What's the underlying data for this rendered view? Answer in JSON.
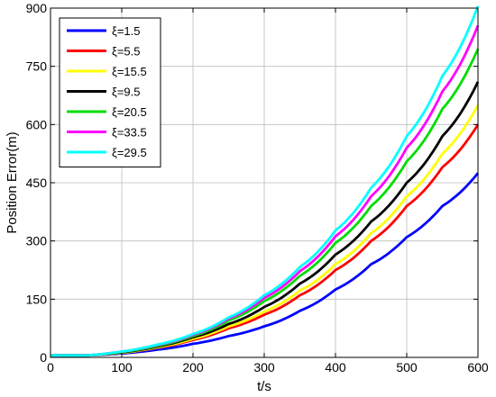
{
  "chart_data": {
    "type": "line",
    "title": "",
    "xlabel": "t/s",
    "ylabel": "Position Error(m)",
    "xlim": [
      0,
      600
    ],
    "ylim": [
      0,
      900
    ],
    "xticks": [
      0,
      100,
      200,
      300,
      400,
      500,
      600
    ],
    "yticks": [
      0,
      150,
      300,
      450,
      600,
      750,
      900
    ],
    "grid": true,
    "legend_position": "top-left",
    "x": [
      0,
      50,
      100,
      150,
      200,
      250,
      300,
      350,
      400,
      450,
      500,
      550,
      600
    ],
    "series": [
      {
        "name": "ξ=1.5",
        "color": "#0000ff",
        "values": [
          5,
          5,
          10,
          20,
          35,
          55,
          80,
          120,
          175,
          240,
          310,
          390,
          475
        ]
      },
      {
        "name": "ξ=5.5",
        "color": "#ff0000",
        "values": [
          5,
          5,
          12,
          25,
          45,
          75,
          110,
          160,
          225,
          300,
          390,
          490,
          600
        ]
      },
      {
        "name": "ξ=15.5",
        "color": "#ffff00",
        "values": [
          5,
          5,
          12,
          26,
          48,
          80,
          118,
          172,
          240,
          320,
          415,
          525,
          650
        ]
      },
      {
        "name": "ξ=9.5",
        "color": "#000000",
        "values": [
          5,
          5,
          13,
          28,
          52,
          86,
          130,
          190,
          265,
          350,
          450,
          570,
          710
        ]
      },
      {
        "name": "ξ=20.5",
        "color": "#00dd00",
        "values": [
          5,
          5,
          14,
          30,
          55,
          95,
          145,
          210,
          295,
          390,
          505,
          640,
          795
        ]
      },
      {
        "name": "ξ=33.5",
        "color": "#ff00ff",
        "values": [
          5,
          5,
          15,
          32,
          58,
          100,
          153,
          222,
          312,
          415,
          540,
          685,
          855
        ]
      },
      {
        "name": "ξ=29.5",
        "color": "#00ffff",
        "values": [
          5,
          5,
          15,
          33,
          60,
          103,
          160,
          233,
          327,
          437,
          570,
          725,
          905
        ]
      }
    ]
  }
}
